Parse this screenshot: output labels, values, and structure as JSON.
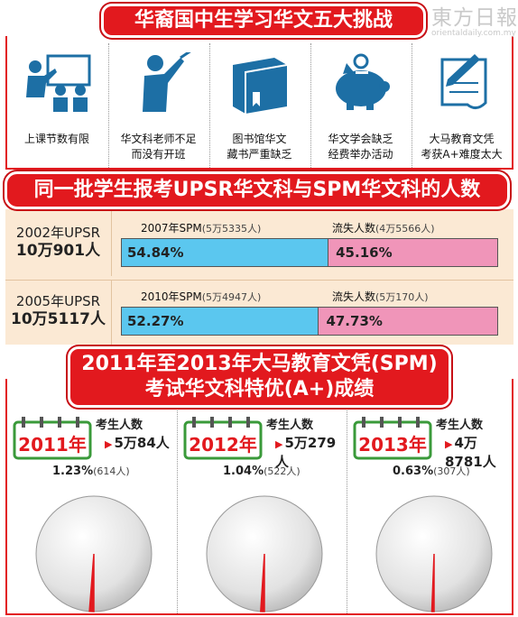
{
  "banner1": "华裔国中生学习华文五大挑战",
  "watermark": {
    "name": "東方日報",
    "url": "orientaldaily.com.my"
  },
  "challenges": [
    {
      "icon": "teacher-class-icon",
      "label": "上课节数有限"
    },
    {
      "icon": "teacher-pointer-icon",
      "label": "华文科老师不足\n而没有开班"
    },
    {
      "icon": "book-icon",
      "label": "图书馆华文\n藏书严重缺乏"
    },
    {
      "icon": "piggy-bank-icon",
      "label": "华文学会缺乏\n经费举办活动"
    },
    {
      "icon": "pen-certificate-icon",
      "label": "大马教育文凭\n考获A+难度太大"
    }
  ],
  "banner2": "同一批学生报考UPSR华文科与SPM华文科的人数",
  "banner3": {
    "line1": "2011年至2013年大马教育文凭(SPM)",
    "line2": "考试华文科特优(A+)成绩"
  },
  "colors": {
    "red": "#e2191e",
    "blue": "#5bc7ef",
    "pink": "#f095b9",
    "peach": "#fbe9d4"
  },
  "chart_data": [
    {
      "type": "bar",
      "stacked": true,
      "orientation": "horizontal",
      "rows": [
        {
          "upsr_year": "2002年UPSR",
          "upsr_count": "10万901人",
          "spm_label": "2007年SPM",
          "spm_count": "(5万5335人)",
          "lost_label": "流失人数",
          "lost_count": "(4万5566人)",
          "spm_pct": 54.84,
          "lost_pct": 45.16,
          "spm_pct_text": "54.84%",
          "lost_pct_text": "45.16%"
        },
        {
          "upsr_year": "2005年UPSR",
          "upsr_count": "10万5117人",
          "spm_label": "2010年SPM",
          "spm_count": "(5万4947人)",
          "lost_label": "流失人数",
          "lost_count": "(5万170人)",
          "spm_pct": 52.27,
          "lost_pct": 47.73,
          "spm_pct_text": "52.27%",
          "lost_pct_text": "47.73%"
        }
      ]
    },
    {
      "type": "pie",
      "pies": [
        {
          "year": "2011年",
          "cand_label": "考生人数",
          "candidates": "5万84人",
          "pct": 1.23,
          "pct_text": "1.23%",
          "count": "(614人)"
        },
        {
          "year": "2012年",
          "cand_label": "考生人数",
          "candidates": "5万279人",
          "pct": 1.04,
          "pct_text": "1.04%",
          "count": "(522人)"
        },
        {
          "year": "2013年",
          "cand_label": "考生人数",
          "candidates": "4万8781人",
          "pct": 0.63,
          "pct_text": "0.63%",
          "count": "(307人)"
        }
      ]
    }
  ]
}
